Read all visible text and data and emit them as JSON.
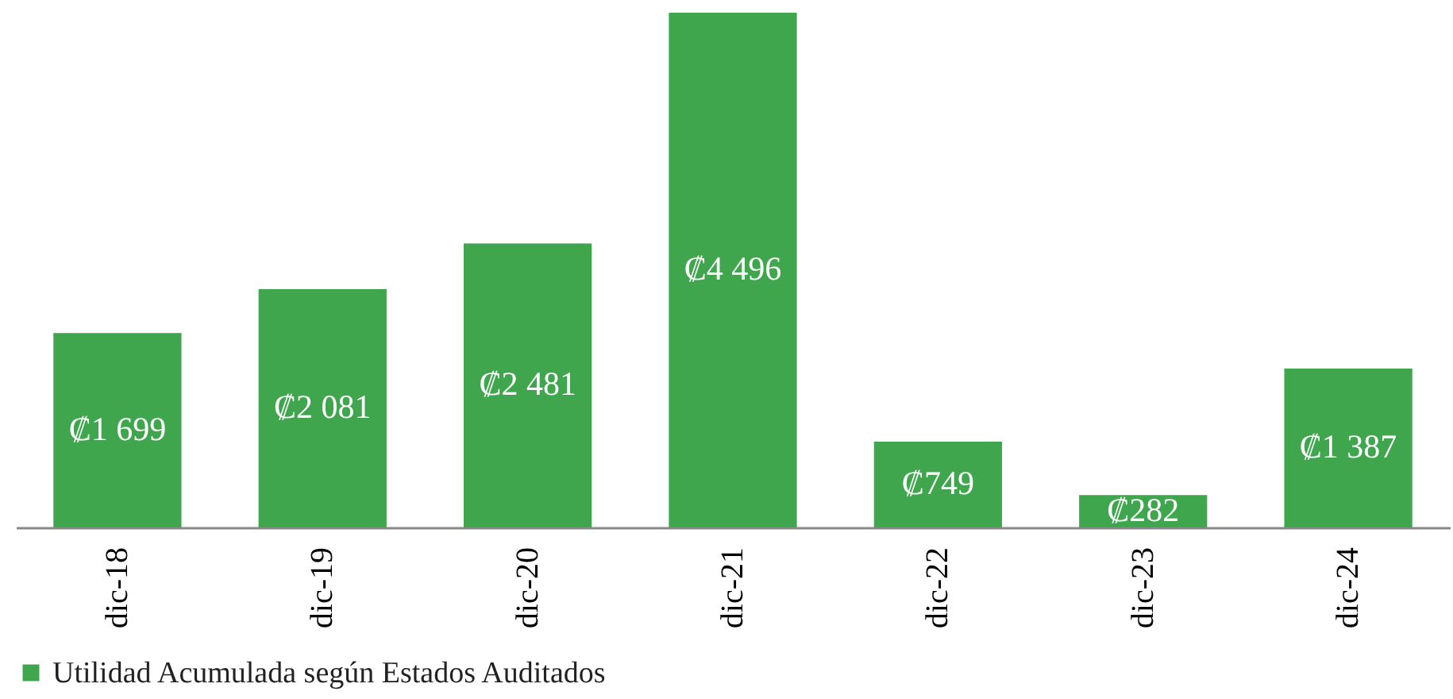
{
  "chart_data": {
    "type": "bar",
    "categories": [
      "dic-18",
      "dic-19",
      "dic-20",
      "dic-21",
      "dic-22",
      "dic-23",
      "dic-24"
    ],
    "series": [
      {
        "name": "Utilidad Acumulada según Estados Auditados",
        "color": "#3fa64e",
        "values": [
          1699,
          2081,
          2481,
          4496,
          749,
          282,
          1387
        ],
        "value_labels": [
          "₡1 699",
          "₡2 081",
          "₡2 481",
          "₡4 496",
          "₡749",
          "₡282",
          "₡1 387"
        ]
      }
    ],
    "legend": "bottom",
    "grid": false
  }
}
